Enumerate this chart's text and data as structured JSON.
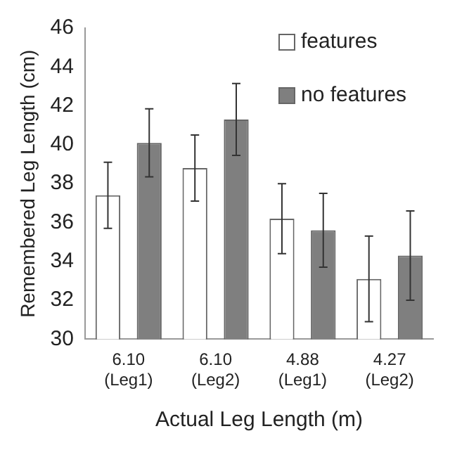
{
  "chart_data": {
    "type": "bar",
    "xlabel": "Actual Leg Length (m)",
    "ylabel": "Remembered Leg Length (cm)",
    "categories": [
      "6.10 (Leg1)",
      "6.10 (Leg2)",
      "4.88 (Leg1)",
      "4.27 (Leg2)"
    ],
    "series": [
      {
        "name": "features",
        "color": "#ffffff",
        "values": [
          37.4,
          38.8,
          36.2,
          33.1
        ],
        "errors": [
          1.7,
          1.7,
          1.8,
          2.2
        ]
      },
      {
        "name": "no features",
        "color": "#7f7f7f",
        "values": [
          40.1,
          41.3,
          35.6,
          34.3
        ],
        "errors": [
          1.75,
          1.85,
          1.9,
          2.3
        ]
      }
    ],
    "ylim": [
      30,
      46
    ],
    "yticks": [
      30,
      32,
      34,
      36,
      38,
      40,
      42,
      44,
      46
    ],
    "grid": false,
    "legend": "top right"
  }
}
